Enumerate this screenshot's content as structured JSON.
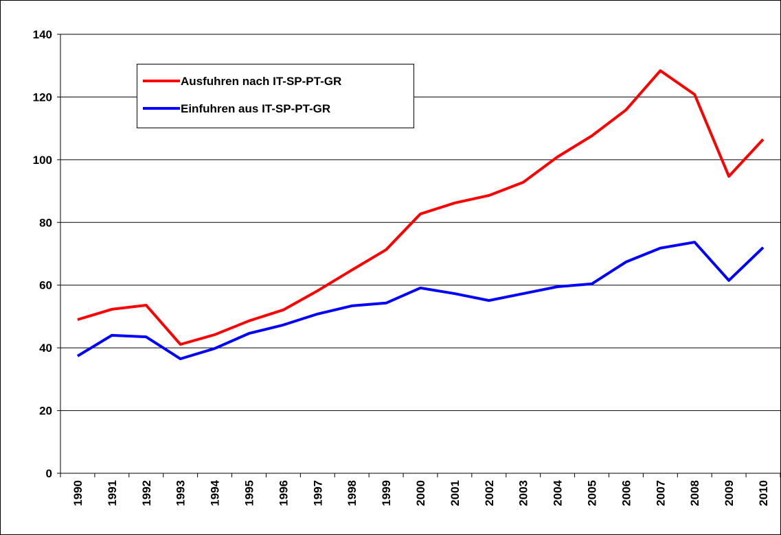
{
  "chart_data": {
    "type": "line",
    "categories": [
      "1990",
      "1991",
      "1992",
      "1993",
      "1994",
      "1995",
      "1996",
      "1997",
      "1998",
      "1999",
      "2000",
      "2001",
      "2002",
      "2003",
      "2004",
      "2005",
      "2006",
      "2007",
      "2008",
      "2009",
      "2010"
    ],
    "series": [
      {
        "name": "Ausfuhren nach IT-SP-PT-GR",
        "color": "#ff0000",
        "values": [
          49,
          52.3,
          53.6,
          41.1,
          44.2,
          48.6,
          52.1,
          58.2,
          64.8,
          71.3,
          82.7,
          86.2,
          88.6,
          92.8,
          100.9,
          107.6,
          115.9,
          128.4,
          120.8,
          94.7,
          106.5
        ]
      },
      {
        "name": "Einfuhren aus IT-SP-PT-GR",
        "color": "#0000ff",
        "values": [
          37.4,
          44,
          43.5,
          36.5,
          39.8,
          44.6,
          47.3,
          50.8,
          53.4,
          54.3,
          59.1,
          57.3,
          55.1,
          57.3,
          59.5,
          60.4,
          67.4,
          71.8,
          73.7,
          61.5,
          72
        ]
      }
    ],
    "ylim": [
      0,
      140
    ],
    "yticks": [
      0,
      20,
      40,
      60,
      80,
      100,
      120,
      140
    ],
    "grid": true
  }
}
